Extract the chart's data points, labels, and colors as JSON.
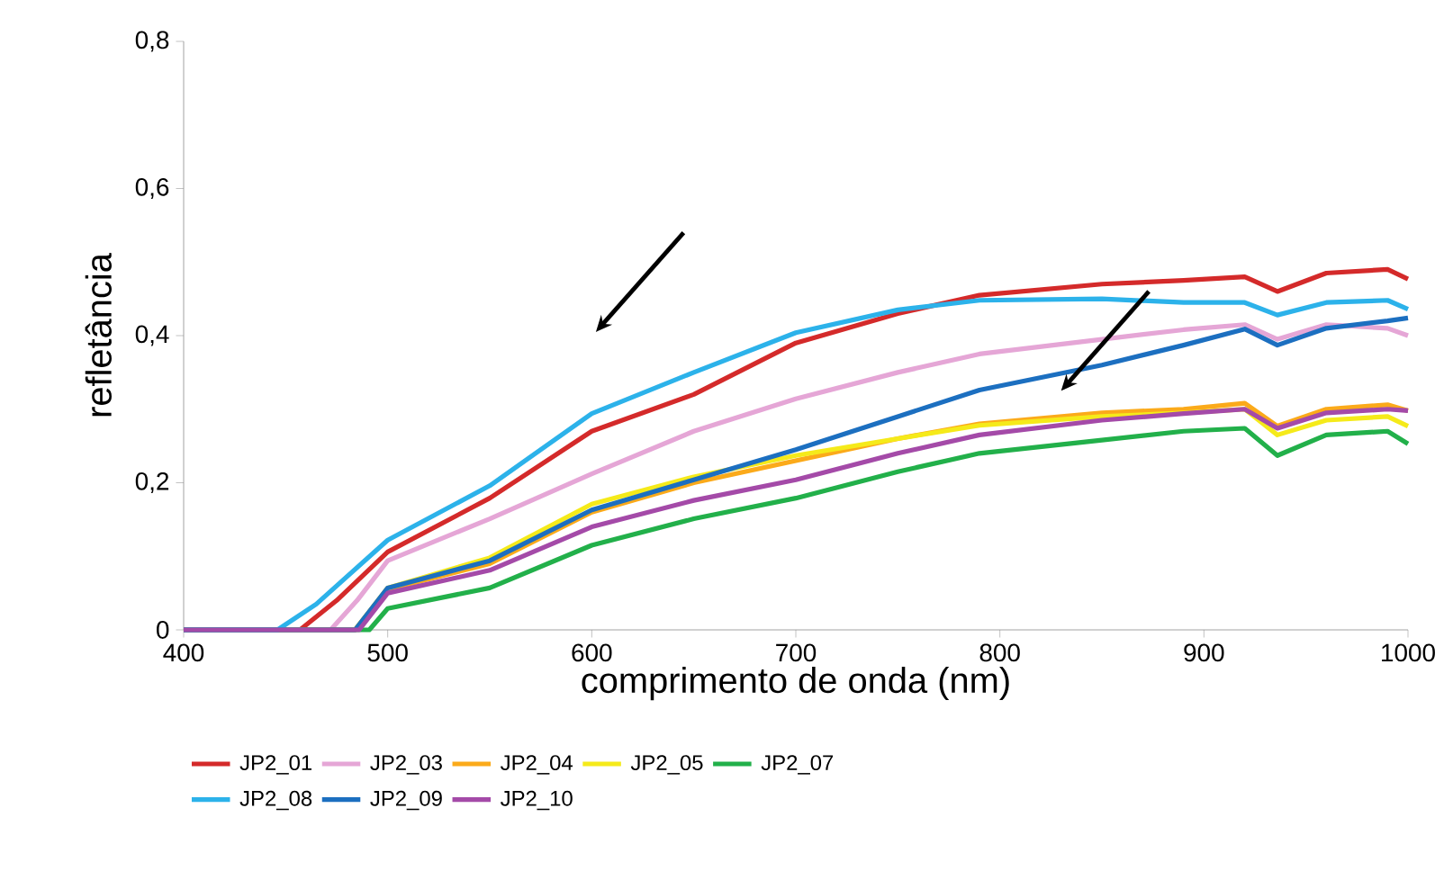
{
  "chart_data": {
    "type": "line",
    "xlabel": "comprimento de onda (nm)",
    "ylabel": "refletância",
    "xlim": [
      400,
      1000
    ],
    "xticks": [
      400,
      500,
      600,
      700,
      800,
      900,
      1000
    ],
    "ylim": [
      0,
      0.8
    ],
    "yticks": [
      0,
      {
        "value": 0.2,
        "label": "0,2"
      },
      {
        "value": 0.4,
        "label": "0,4"
      },
      {
        "value": 0.6,
        "label": "0,6"
      },
      {
        "value": 0.8,
        "label": "0,8"
      }
    ],
    "grid": false,
    "legend": "bottom",
    "marker": "none",
    "line_style": "solid",
    "series": [
      {
        "name": "JP2_01",
        "color": "#d42a2a",
        "x": [
          400,
          457,
          475,
          500,
          550,
          600,
          650,
          700,
          750,
          790,
          850,
          890,
          920,
          936,
          960,
          990,
          1000
        ],
        "values": [
          0,
          0,
          0.04,
          0.106,
          0.179,
          0.27,
          0.32,
          0.39,
          0.43,
          0.455,
          0.47,
          0.475,
          0.48,
          0.46,
          0.485,
          0.49,
          0.477
        ]
      },
      {
        "name": "JP2_03",
        "color": "#e5a6d6",
        "x": [
          400,
          472,
          485,
          500,
          550,
          600,
          650,
          700,
          750,
          790,
          850,
          890,
          920,
          936,
          960,
          990,
          1000
        ],
        "values": [
          0,
          0,
          0.04,
          0.094,
          0.151,
          0.212,
          0.27,
          0.314,
          0.35,
          0.375,
          0.395,
          0.408,
          0.415,
          0.395,
          0.415,
          0.41,
          0.4
        ]
      },
      {
        "name": "JP2_04",
        "color": "#fbaa1a",
        "x": [
          400,
          484,
          500,
          550,
          600,
          650,
          700,
          750,
          790,
          850,
          890,
          920,
          936,
          960,
          990,
          1000
        ],
        "values": [
          0,
          0,
          0.055,
          0.09,
          0.16,
          0.2,
          0.23,
          0.26,
          0.28,
          0.295,
          0.3,
          0.308,
          0.277,
          0.3,
          0.306,
          0.298
        ]
      },
      {
        "name": "JP2_05",
        "color": "#f5ea1a",
        "x": [
          400,
          484,
          500,
          550,
          600,
          650,
          700,
          750,
          790,
          850,
          890,
          920,
          936,
          960,
          990,
          1000
        ],
        "values": [
          0,
          0,
          0.057,
          0.098,
          0.171,
          0.208,
          0.237,
          0.26,
          0.278,
          0.29,
          0.295,
          0.3,
          0.265,
          0.285,
          0.29,
          0.277
        ]
      },
      {
        "name": "JP2_07",
        "color": "#22b04a",
        "x": [
          400,
          491,
          500,
          550,
          600,
          650,
          700,
          750,
          790,
          850,
          890,
          920,
          936,
          960,
          990,
          1000
        ],
        "values": [
          0,
          0,
          0.029,
          0.057,
          0.115,
          0.151,
          0.179,
          0.215,
          0.24,
          0.258,
          0.27,
          0.274,
          0.237,
          0.265,
          0.27,
          0.253
        ]
      },
      {
        "name": "JP2_08",
        "color": "#2cb2ea",
        "x": [
          400,
          446,
          465,
          500,
          550,
          600,
          650,
          700,
          750,
          790,
          850,
          890,
          920,
          936,
          960,
          990,
          1000
        ],
        "values": [
          0,
          0,
          0.035,
          0.122,
          0.196,
          0.294,
          0.35,
          0.404,
          0.435,
          0.448,
          0.45,
          0.445,
          0.445,
          0.428,
          0.445,
          0.448,
          0.436
        ]
      },
      {
        "name": "JP2_09",
        "color": "#1c6fc0",
        "x": [
          400,
          484,
          500,
          550,
          600,
          650,
          700,
          750,
          790,
          850,
          890,
          920,
          936,
          960,
          990,
          1000
        ],
        "values": [
          0,
          0,
          0.057,
          0.094,
          0.163,
          0.204,
          0.245,
          0.29,
          0.326,
          0.36,
          0.387,
          0.409,
          0.387,
          0.41,
          0.42,
          0.424
        ]
      },
      {
        "name": "JP2_10",
        "color": "#a44aa8",
        "x": [
          400,
          486,
          500,
          550,
          600,
          650,
          700,
          750,
          790,
          850,
          890,
          920,
          936,
          960,
          990,
          1000
        ],
        "values": [
          0,
          0,
          0.05,
          0.081,
          0.14,
          0.176,
          0.204,
          0.24,
          0.265,
          0.285,
          0.294,
          0.3,
          0.274,
          0.295,
          0.3,
          0.298
        ]
      }
    ]
  }
}
